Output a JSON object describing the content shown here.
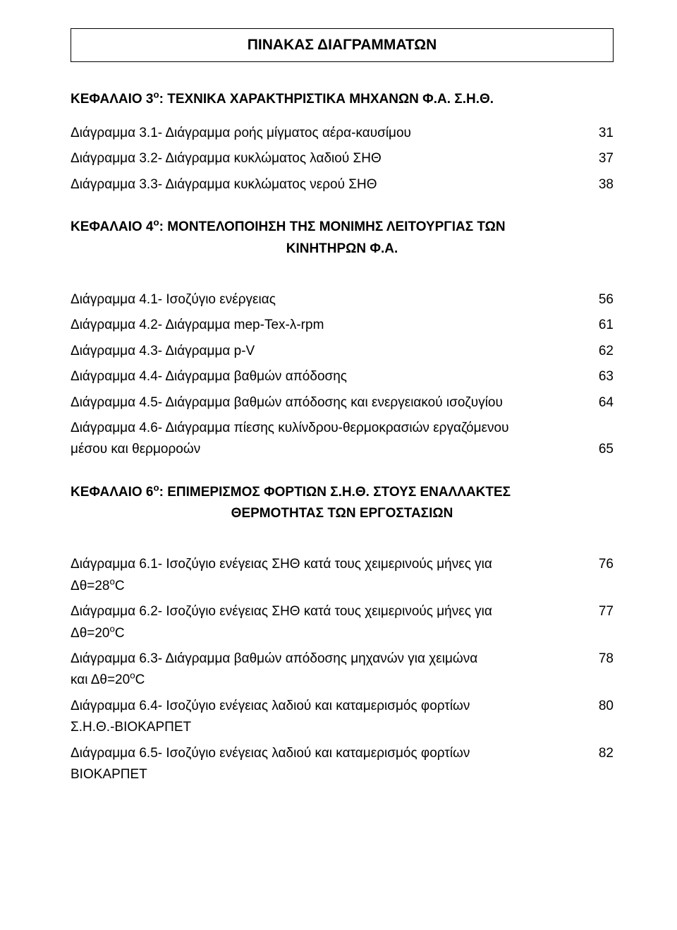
{
  "title": "ΠΙΝΑΚΑΣ ΔΙΑΓΡΑΜΜΑΤΩΝ",
  "chapter3": {
    "heading_prefix": "ΚΕΦΑΛΑΙΟ 3",
    "heading_sup": "ο",
    "heading_suffix": ": ΤΕΧΝΙΚΑ ΧΑΡΑΚΤΗΡΙΣΤΙΚΑ ΜΗΧΑΝΩΝ Φ.Α. Σ.Η.Θ.",
    "e1": {
      "label": "Διάγραμμα 3.1- Διάγραμμα ροής μίγματος αέρα-καυσίμου",
      "page": "31"
    },
    "e2": {
      "label": "Διάγραμμα 3.2- Διάγραμμα κυκλώματος λαδιού ΣΗΘ",
      "page": "37"
    },
    "e3": {
      "label": "Διάγραμμα 3.3- Διάγραμμα κυκλώματος νερού ΣΗΘ",
      "page": "38"
    }
  },
  "chapter4": {
    "heading_prefix": "ΚΕΦΑΛΑΙΟ 4",
    "heading_sup": "ο",
    "heading_suffix": ": ΜΟΝΤΕΛΟΠΟΙΗΣΗ ΤΗΣ ΜΟΝΙΜΗΣ ΛΕΙΤΟΥΡΓΙΑΣ ΤΩΝ",
    "heading_line2": "ΚΙΝΗΤΗΡΩΝ Φ.Α.",
    "e1": {
      "label": "Διάγραμμα 4.1- Ισοζύγιο ενέργειας",
      "page": "56"
    },
    "e2": {
      "label": "Διάγραμμα 4.2- Διάγραμμα mep-Tex-λ-rpm",
      "page": "61"
    },
    "e3": {
      "label": "Διάγραμμα 4.3- Διάγραμμα p-V",
      "page": "62"
    },
    "e4": {
      "label": "Διάγραμμα 4.4- Διάγραμμα βαθμών απόδοσης",
      "page": "63"
    },
    "e5": {
      "label": "Διάγραμμα 4.5- Διάγραμμα βαθμών απόδοσης και ενεργειακού ισοζυγίου",
      "page": "64"
    },
    "e6": {
      "label_line1": "Διάγραμμα 4.6- Διάγραμμα πίεσης κυλίνδρου-θερμοκρασιών εργαζόμενου",
      "label_line2": "μέσου και θερμοροών",
      "page": "65"
    }
  },
  "chapter6": {
    "heading_prefix": "ΚΕΦΑΛΑΙΟ 6",
    "heading_sup": "ο",
    "heading_suffix": ": ΕΠΙΜΕΡΙΣΜΟΣ ΦΟΡΤΙΩΝ Σ.Η.Θ. ΣΤΟΥΣ ΕΝΑΛΛΑΚΤΕΣ",
    "heading_line2": "ΘΕΡΜΟΤΗΤΑΣ ΤΩΝ ΕΡΓΟΣΤΑΣΙΩΝ",
    "e1": {
      "label_line1": "Διάγραμμα 6.1- Ισοζύγιο ενέγειας ΣΗΘ κατά τους χειμερινούς μήνες για",
      "label_line2_pre": "Δθ=28",
      "label_line2_sup": "ο",
      "label_line2_post": "C",
      "page": "76"
    },
    "e2": {
      "label_line1": "Διάγραμμα 6.2- Ισοζύγιο ενέγειας ΣΗΘ κατά τους χειμερινούς μήνες για",
      "label_line2_pre": "Δθ=20",
      "label_line2_sup": "ο",
      "label_line2_post": "C",
      "page": "77"
    },
    "e3": {
      "label_line1": "Διάγραμμα 6.3- Διάγραμμα βαθμών απόδοσης μηχανών για χειμώνα",
      "label_line2_pre": "και  Δθ=20",
      "label_line2_sup": "ο",
      "label_line2_post": "C",
      "page": "78"
    },
    "e4": {
      "label_line1": "Διάγραμμα 6.4- Ισοζύγιο ενέγειας λαδιού και καταμερισμός φορτίων",
      "label_line2": "Σ.Η.Θ.-ΒΙΟΚΑΡΠΕΤ",
      "page": "80"
    },
    "e5": {
      "label_line1": "Διάγραμμα 6.5- Ισοζύγιο ενέγειας λαδιού και καταμερισμός φορτίων",
      "label_line2": " ΒΙΟΚΑΡΠΕΤ",
      "page": "82"
    }
  }
}
